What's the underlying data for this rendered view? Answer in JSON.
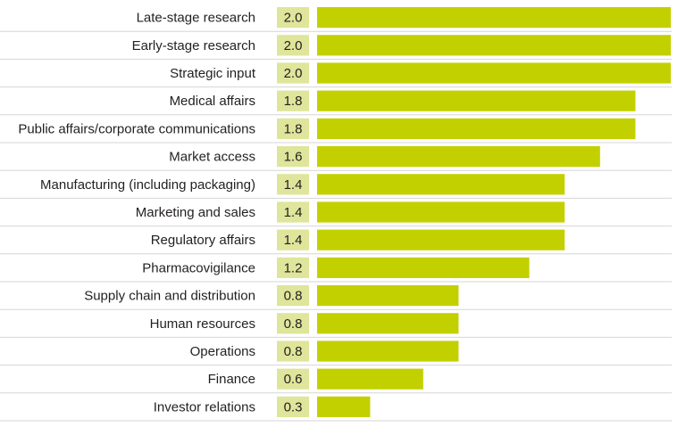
{
  "chart_data": {
    "type": "bar",
    "orientation": "horizontal",
    "categories": [
      "Late-stage research",
      "Early-stage research",
      "Strategic input",
      "Medical affairs",
      "Public affairs/corporate communications",
      "Market access",
      "Manufacturing (including packaging)",
      "Marketing and sales",
      "Regulatory affairs",
      "Pharmacovigilance",
      "Supply chain and distribution",
      "Human resources",
      "Operations",
      "Finance",
      "Investor relations"
    ],
    "values": [
      2.0,
      2.0,
      2.0,
      1.8,
      1.8,
      1.6,
      1.4,
      1.4,
      1.4,
      1.2,
      0.8,
      0.8,
      0.8,
      0.6,
      0.3
    ],
    "value_labels": [
      "2.0",
      "2.0",
      "2.0",
      "1.8",
      "1.8",
      "1.6",
      "1.4",
      "1.4",
      "1.4",
      "1.2",
      "0.8",
      "0.8",
      "0.8",
      "0.6",
      "0.3"
    ],
    "xlim": [
      0,
      2.0
    ],
    "grid": false,
    "legend": "none",
    "colors": {
      "bar": "#c3d000",
      "value_box": "#dfe59a",
      "row_line": "#d6d6d6",
      "text": "#231f20"
    }
  }
}
